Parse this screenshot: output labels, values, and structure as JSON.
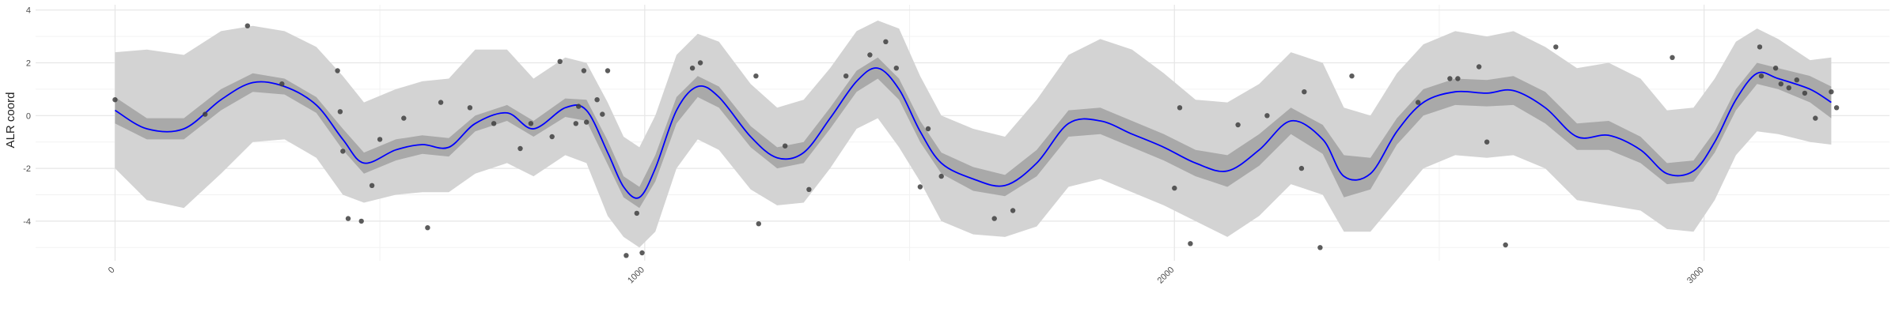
{
  "chart_data": {
    "type": "line",
    "title": "",
    "xlabel": "",
    "ylabel": "ALR coord",
    "xlim": [
      -150,
      3350
    ],
    "ylim": [
      -5.5,
      4.2
    ],
    "x_ticks": [
      0,
      1000,
      2000,
      3000
    ],
    "x_tick_labels": [
      "0",
      "1000",
      "2000",
      "3000"
    ],
    "y_ticks": [
      -4,
      -2,
      0,
      2,
      4
    ],
    "y_tick_labels": [
      "-4",
      "-2",
      "0",
      "2",
      "4"
    ],
    "grid": true,
    "legend": "none",
    "colors": {
      "line": "#0000ff",
      "inner_band": "#a9a9a9",
      "outer_band": "#d3d3d3",
      "points": "#404040",
      "grid_major": "#e6e6e6",
      "grid_minor": "#f2f2f2"
    },
    "curve": {
      "x": [
        0,
        60,
        130,
        200,
        260,
        320,
        380,
        430,
        470,
        530,
        580,
        630,
        680,
        740,
        790,
        850,
        890,
        930,
        960,
        990,
        1020,
        1060,
        1100,
        1140,
        1200,
        1250,
        1300,
        1350,
        1400,
        1440,
        1480,
        1520,
        1560,
        1620,
        1680,
        1740,
        1800,
        1860,
        1920,
        1980,
        2040,
        2100,
        2160,
        2220,
        2280,
        2320,
        2370,
        2420,
        2470,
        2530,
        2590,
        2640,
        2700,
        2760,
        2820,
        2880,
        2930,
        2980,
        3020,
        3060,
        3100,
        3140,
        3200,
        3240
      ],
      "mean": [
        0.2,
        -0.5,
        -0.5,
        0.6,
        1.25,
        1.1,
        0.4,
        -0.9,
        -1.8,
        -1.3,
        -1.1,
        -1.2,
        -0.3,
        0.1,
        -0.5,
        0.3,
        0.2,
        -1.4,
        -2.7,
        -3.1,
        -2.0,
        0.2,
        1.1,
        0.7,
        -0.8,
        -1.6,
        -1.4,
        -0.1,
        1.3,
        1.8,
        1.0,
        -0.6,
        -1.8,
        -2.4,
        -2.65,
        -1.8,
        -0.3,
        -0.2,
        -0.7,
        -1.2,
        -1.8,
        -2.1,
        -1.3,
        -0.2,
        -0.9,
        -2.3,
        -2.2,
        -0.6,
        0.5,
        0.9,
        0.85,
        0.95,
        0.3,
        -0.8,
        -0.75,
        -1.3,
        -2.2,
        -2.1,
        -1.0,
        0.6,
        1.6,
        1.4,
        1.0,
        0.5
      ],
      "inner_lo": [
        -0.3,
        -0.9,
        -0.9,
        0.2,
        0.9,
        0.8,
        0.1,
        -1.3,
        -2.2,
        -1.7,
        -1.45,
        -1.55,
        -0.6,
        -0.2,
        -0.8,
        -0.05,
        -0.2,
        -1.85,
        -3.1,
        -3.5,
        -2.5,
        -0.3,
        0.7,
        0.3,
        -1.2,
        -2.0,
        -1.8,
        -0.5,
        0.9,
        1.4,
        0.6,
        -1.0,
        -2.2,
        -2.85,
        -3.05,
        -2.3,
        -0.8,
        -0.7,
        -1.2,
        -1.7,
        -2.3,
        -2.7,
        -1.9,
        -0.7,
        -1.45,
        -3.1,
        -2.8,
        -1.1,
        0.0,
        0.4,
        0.35,
        0.4,
        -0.3,
        -1.3,
        -1.3,
        -1.8,
        -2.6,
        -2.5,
        -1.4,
        0.2,
        1.2,
        1.0,
        0.5,
        -0.1
      ],
      "inner_hi": [
        0.7,
        -0.1,
        -0.1,
        1.0,
        1.6,
        1.4,
        0.7,
        -0.5,
        -1.4,
        -0.9,
        -0.75,
        -0.85,
        0.0,
        0.4,
        -0.2,
        0.65,
        0.6,
        -0.95,
        -2.3,
        -2.7,
        -1.5,
        0.7,
        1.5,
        1.1,
        -0.4,
        -1.2,
        -1.0,
        0.3,
        1.7,
        2.2,
        1.4,
        -0.2,
        -1.4,
        -1.95,
        -2.25,
        -1.3,
        0.2,
        0.3,
        -0.2,
        -0.7,
        -1.3,
        -1.5,
        -0.7,
        0.3,
        -0.35,
        -1.5,
        -1.6,
        -0.1,
        1.0,
        1.4,
        1.35,
        1.5,
        0.9,
        -0.3,
        -0.2,
        -0.8,
        -1.8,
        -1.7,
        -0.6,
        1.0,
        2.0,
        1.8,
        1.5,
        1.1
      ],
      "outer_lo": [
        -2.0,
        -3.2,
        -3.5,
        -2.2,
        -1.0,
        -0.9,
        -1.6,
        -3.0,
        -3.3,
        -3.0,
        -2.9,
        -2.9,
        -2.2,
        -1.8,
        -2.3,
        -1.5,
        -1.8,
        -3.8,
        -4.6,
        -5.0,
        -4.4,
        -2.0,
        -0.9,
        -1.3,
        -2.8,
        -3.4,
        -3.3,
        -2.0,
        -0.5,
        -0.1,
        -1.2,
        -2.5,
        -4.0,
        -4.5,
        -4.6,
        -4.2,
        -2.7,
        -2.4,
        -2.9,
        -3.4,
        -4.0,
        -4.6,
        -3.8,
        -2.6,
        -3.0,
        -4.4,
        -4.4,
        -3.2,
        -2.0,
        -1.5,
        -1.6,
        -1.5,
        -2.0,
        -3.2,
        -3.4,
        -3.6,
        -4.3,
        -4.4,
        -3.2,
        -1.5,
        -0.6,
        -0.7,
        -1.0,
        -1.1
      ],
      "outer_hi": [
        2.4,
        2.5,
        2.3,
        3.2,
        3.4,
        3.2,
        2.6,
        1.5,
        0.5,
        1.0,
        1.3,
        1.4,
        2.5,
        2.5,
        1.4,
        2.2,
        2.0,
        0.5,
        -0.8,
        -1.2,
        0.0,
        2.3,
        3.1,
        2.8,
        1.2,
        0.3,
        0.6,
        1.8,
        3.2,
        3.6,
        3.3,
        1.5,
        0.0,
        -0.5,
        -0.8,
        0.6,
        2.3,
        2.9,
        2.5,
        1.6,
        0.6,
        0.5,
        1.2,
        2.4,
        2.0,
        0.3,
        0.0,
        1.6,
        2.7,
        3.2,
        3.0,
        3.2,
        2.6,
        1.8,
        2.0,
        1.4,
        0.2,
        0.3,
        1.4,
        2.8,
        3.3,
        2.9,
        2.1,
        2.2
      ]
    },
    "points": {
      "x": [
        0,
        170,
        250,
        315,
        420,
        425,
        430,
        440,
        465,
        485,
        500,
        545,
        590,
        615,
        670,
        715,
        765,
        785,
        825,
        840,
        870,
        875,
        885,
        890,
        910,
        920,
        930,
        965,
        985,
        995,
        1090,
        1105,
        1210,
        1215,
        1265,
        1310,
        1380,
        1425,
        1455,
        1475,
        1520,
        1535,
        1560,
        1660,
        1695,
        2000,
        2010,
        2030,
        2120,
        2175,
        2240,
        2245,
        2275,
        2335,
        2460,
        2520,
        2535,
        2575,
        2590,
        2625,
        2720,
        2940,
        3105,
        3108,
        3135,
        3145,
        3160,
        3175,
        3190,
        3210,
        3240,
        3250
      ],
      "y": [
        0.6,
        0.05,
        3.4,
        1.2,
        1.7,
        0.15,
        -1.35,
        -3.9,
        -4.0,
        -2.65,
        -0.9,
        -0.1,
        -4.25,
        0.5,
        0.3,
        -0.3,
        -1.25,
        -0.3,
        -0.8,
        2.05,
        -0.3,
        0.35,
        1.7,
        -0.25,
        0.6,
        0.05,
        1.7,
        -5.3,
        -3.7,
        -5.2,
        1.8,
        2.0,
        1.5,
        -4.1,
        -1.15,
        -2.8,
        1.5,
        2.3,
        2.8,
        1.8,
        -2.7,
        -0.5,
        -2.3,
        -3.9,
        -3.6,
        -2.75,
        0.3,
        -4.85,
        -0.35,
        0.0,
        -2.0,
        0.9,
        -5.0,
        1.5,
        0.5,
        1.4,
        1.4,
        1.85,
        -1.0,
        -4.9,
        2.6,
        2.2,
        2.6,
        1.5,
        1.8,
        1.2,
        1.05,
        1.35,
        0.85,
        -0.1,
        0.9,
        0.3
      ]
    }
  }
}
